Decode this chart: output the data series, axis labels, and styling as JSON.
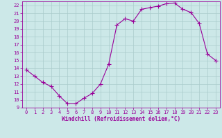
{
  "x": [
    0,
    1,
    2,
    3,
    4,
    5,
    6,
    7,
    8,
    9,
    10,
    11,
    12,
    13,
    14,
    15,
    16,
    17,
    18,
    19,
    20,
    21,
    22,
    23
  ],
  "y": [
    13.8,
    13.0,
    12.2,
    11.7,
    10.5,
    9.5,
    9.5,
    10.2,
    10.8,
    12.0,
    14.5,
    19.5,
    20.3,
    20.0,
    21.5,
    21.7,
    21.9,
    22.2,
    22.3,
    21.5,
    21.1,
    19.7,
    15.8,
    15.0
  ],
  "line_color": "#990099",
  "marker": "+",
  "marker_size": 4,
  "bg_color": "#cce8e8",
  "grid_color": "#aacccc",
  "xlabel": "Windchill (Refroidissement éolien,°C)",
  "xlabel_color": "#990099",
  "tick_color": "#990099",
  "ylim": [
    9,
    22.5
  ],
  "xlim": [
    -0.5,
    23.5
  ],
  "yticks": [
    9,
    10,
    11,
    12,
    13,
    14,
    15,
    16,
    17,
    18,
    19,
    20,
    21,
    22
  ],
  "xticks": [
    0,
    1,
    2,
    3,
    4,
    5,
    6,
    7,
    8,
    9,
    10,
    11,
    12,
    13,
    14,
    15,
    16,
    17,
    18,
    19,
    20,
    21,
    22,
    23
  ]
}
